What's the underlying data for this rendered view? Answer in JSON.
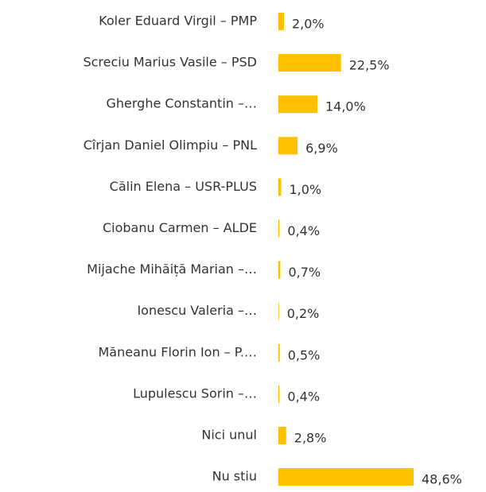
{
  "chart_data": {
    "type": "bar",
    "orientation": "horizontal",
    "categories": [
      "Koler Eduard Virgil – PMP",
      "Screciu Marius Vasile – PSD",
      "Gherghe Constantin –…",
      "Cîrjan Daniel Olimpiu – PNL",
      "Călin Elena – USR-PLUS",
      "Ciobanu Carmen – ALDE",
      "Mijache Mihăiță Marian –…",
      "Ionescu Valeria –…",
      "Măneanu Florin Ion – P.…",
      "Lupulescu Sorin –…",
      "Nici unul",
      "Nu stiu"
    ],
    "values": [
      2.0,
      22.5,
      14.0,
      6.9,
      1.0,
      0.4,
      0.7,
      0.2,
      0.5,
      0.4,
      2.8,
      48.6
    ],
    "value_labels": [
      "2,0%",
      "22,5%",
      "14,0%",
      "6,9%",
      "1,0%",
      "0,4%",
      "0,7%",
      "0,2%",
      "0,5%",
      "0,4%",
      "2,8%",
      "48,6%"
    ],
    "color": "#FFC000"
  }
}
